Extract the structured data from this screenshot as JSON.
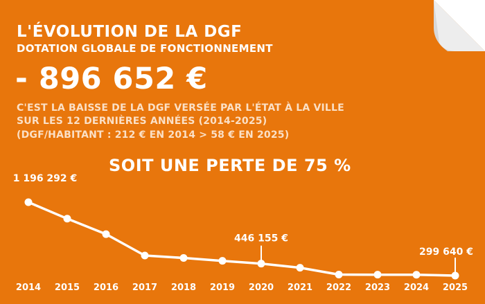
{
  "header": {
    "title": "L'ÉVOLUTION DE LA DGF",
    "subtitle": "DOTATION GLOBALE DE FONCTIONNEMENT",
    "amount": "- 896 652 €"
  },
  "description": {
    "line1": "C'EST LA BAISSE DE LA DGF VERSÉE PAR L'ÉTAT À LA VILLE",
    "line2": "SUR LES 12 DERNIÈRES ANNÉES (2014-2025)",
    "line3": "(DGF/HABITANT : 212 € EN 2014 > 58 € EN 2025)"
  },
  "headline": "SOIT UNE PERTE DE 75 %",
  "colors": {
    "background": "#e8760c",
    "foreground": "#ffffff",
    "fold": "#d8d8d8"
  },
  "chart_data": {
    "type": "line",
    "x": [
      "2014",
      "2015",
      "2016",
      "2017",
      "2018",
      "2019",
      "2020",
      "2021",
      "2022",
      "2023",
      "2024",
      "2025"
    ],
    "values": [
      1196292,
      995000,
      806000,
      545000,
      515000,
      480000,
      446155,
      396000,
      312000,
      311000,
      310000,
      299640
    ],
    "ylim": [
      250000,
      1250000
    ],
    "annotations": [
      {
        "index": 0,
        "label": "1 196 292 €"
      },
      {
        "index": 6,
        "label": "446 155 €"
      },
      {
        "index": 11,
        "label": "299 640 €"
      }
    ],
    "title": "",
    "xlabel": "",
    "ylabel": ""
  }
}
